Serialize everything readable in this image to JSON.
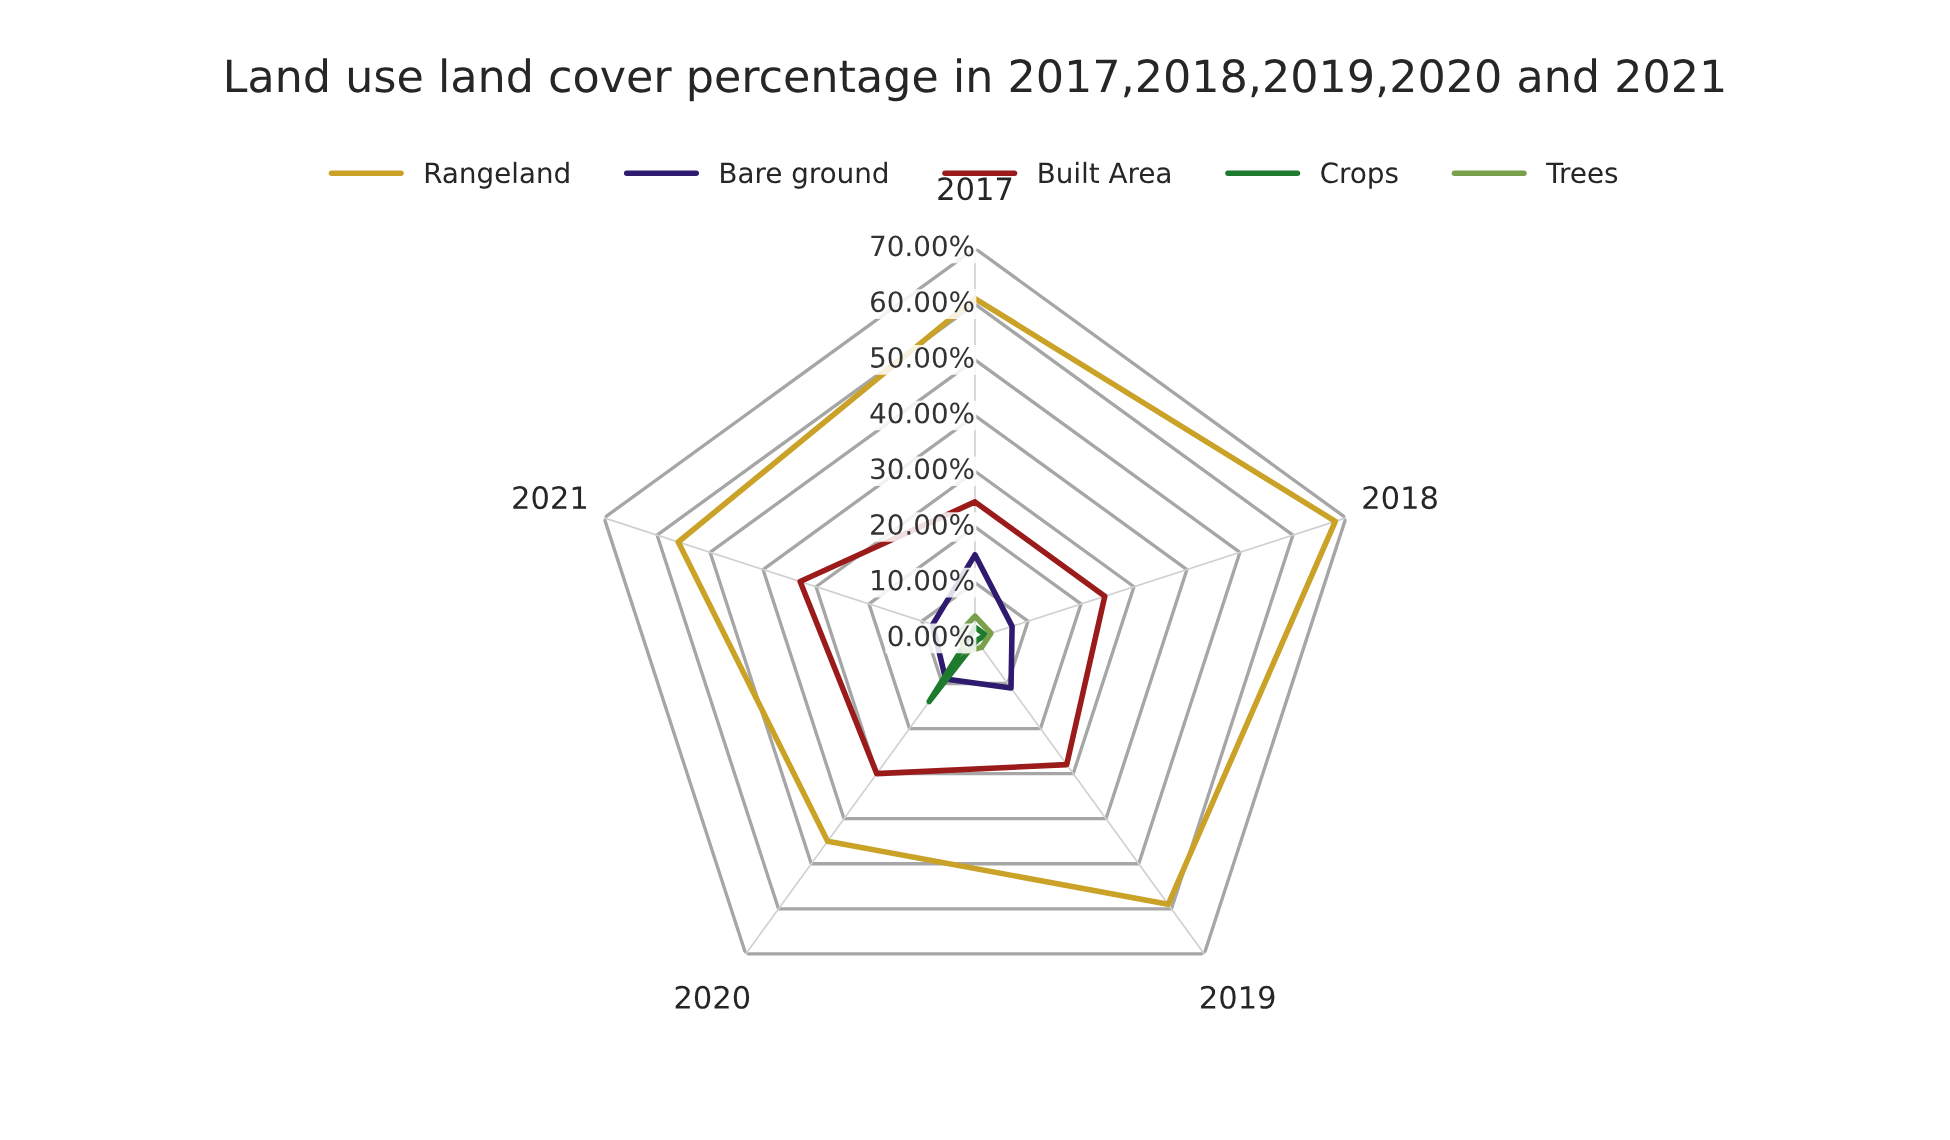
{
  "chart_data": {
    "type": "radar",
    "title": "Land use land cover percentage in 2017,2018,2019,2020 and 2021",
    "categories": [
      "2017",
      "2018",
      "2019",
      "2020",
      "2021"
    ],
    "series": [
      {
        "name": "Rangeland",
        "color": "#c9a227",
        "values": [
          61,
          68,
          59,
          45,
          56
        ]
      },
      {
        "name": "Bare ground",
        "color": "#2e1a6e",
        "values": [
          15,
          7,
          11,
          9,
          8
        ]
      },
      {
        "name": "Built Area",
        "color": "#9b1b1b",
        "values": [
          24.5,
          24.5,
          28,
          30,
          33
        ]
      },
      {
        "name": "Crops",
        "color": "#1e7b2e",
        "values": [
          2,
          2,
          0.5,
          14,
          1
        ]
      },
      {
        "name": "Trees",
        "color": "#79a04a",
        "values": [
          4,
          3,
          2,
          3,
          3
        ]
      }
    ],
    "ylim": [
      0,
      70
    ],
    "yticks": [
      {
        "value": 0,
        "label": "0.00%"
      },
      {
        "value": 10,
        "label": "10.00%"
      },
      {
        "value": 20,
        "label": "20.00%"
      },
      {
        "value": 30,
        "label": "30.00%"
      },
      {
        "value": 40,
        "label": "40.00%"
      },
      {
        "value": 50,
        "label": "50.00%"
      },
      {
        "value": 60,
        "label": "60.00%"
      },
      {
        "value": 70,
        "label": "70.00%"
      }
    ],
    "grid": true,
    "legend": "top"
  }
}
